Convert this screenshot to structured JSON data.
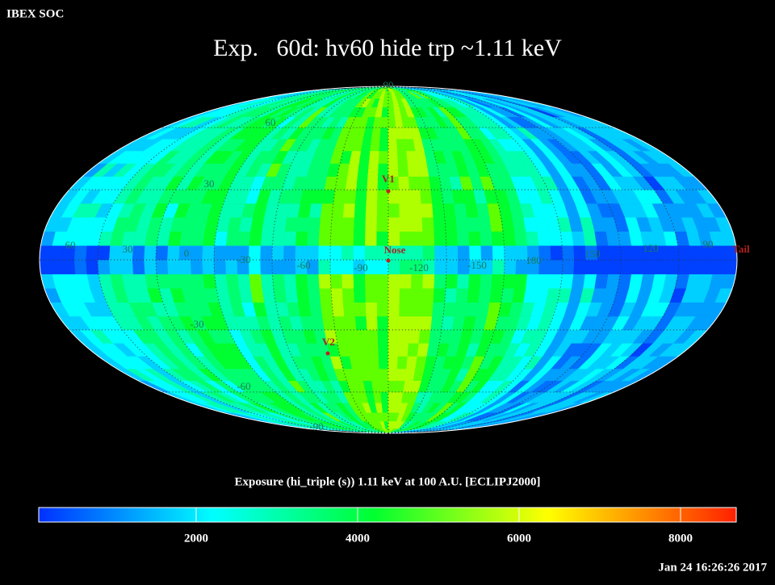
{
  "header": {
    "source": "IBEX SOC",
    "title": "Exp.   60d: hv60 hide trp ~1.11 keV"
  },
  "map": {
    "longitude_labels": [
      "60",
      "30",
      "0",
      "-30",
      "-60",
      "-90",
      "-120",
      "-150",
      "180",
      "150",
      "120",
      "90"
    ],
    "latitude_labels": [
      "90",
      "60",
      "30",
      "-30",
      "-60",
      "-90"
    ],
    "markers": [
      "V1",
      "Nose",
      "V2",
      "Tail"
    ]
  },
  "colorbar": {
    "label": "Exposure (hi_triple (s))  1.11 keV at 100 A.U. [ECLIPJ2000]",
    "lim": [
      50,
      8690
    ],
    "ticks": [
      2000,
      4000,
      6000,
      8000
    ]
  },
  "timestamp": "Jan 24 16:26:26 2017"
}
